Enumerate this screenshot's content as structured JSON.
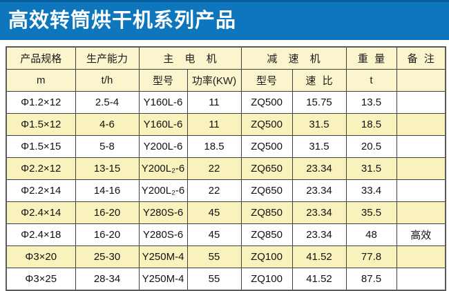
{
  "title": "高效转筒烘干机系列产品",
  "colors": {
    "banner_blue": "#0d76bd",
    "banner_top_edge": "#0a5f9e",
    "header_cream": "#fbf5cd",
    "alt_row_yellow": "#faf2bd",
    "border": "#3f3f3f",
    "title_text": "#ffffff"
  },
  "table": {
    "header_row1": [
      {
        "label": "产品规格"
      },
      {
        "label": "生产能力"
      },
      {
        "label": "主 电 机"
      },
      {
        "label": "减 速 机"
      },
      {
        "label": "重 量"
      },
      {
        "label": "备 注"
      }
    ],
    "header_row2": [
      {
        "label": "m"
      },
      {
        "label": "t/h"
      },
      {
        "label": "型号"
      },
      {
        "label": "功率(KW)"
      },
      {
        "label": "型号"
      },
      {
        "label": "速 比"
      },
      {
        "label": "t"
      },
      {
        "label": ""
      }
    ],
    "columns": [
      "spec",
      "capacity",
      "motor-model",
      "motor-power",
      "reducer-model",
      "reducer-ratio",
      "weight",
      "remark"
    ],
    "rows": [
      [
        "Φ1.2×12",
        "2.5-4",
        "Y160L-6",
        "11",
        "ZQ500",
        "15.75",
        "13.5",
        ""
      ],
      [
        "Φ1.5×12",
        "4-6",
        "Y160L-6",
        "11",
        "ZQ500",
        "31.5",
        "18.5",
        ""
      ],
      [
        "Φ1.5×15",
        "5-8",
        "Y200L-6",
        "18.5",
        "ZQ500",
        "31.5",
        "20.5",
        ""
      ],
      [
        "Φ2.2×12",
        "13-15",
        "Y200L₂-6",
        "22",
        "ZQ650",
        "23.34",
        "31.5",
        ""
      ],
      [
        "Φ2.2×14",
        "14-16",
        "Y200L₂-6",
        "22",
        "ZQ650",
        "23.34",
        "33.4",
        ""
      ],
      [
        "Φ2.4×14",
        "16-20",
        "Y280S-6",
        "45",
        "ZQ850",
        "23.34",
        "35.5",
        ""
      ],
      [
        "Φ2.4×18",
        "16-20",
        "Y280S-6",
        "45",
        "ZQ850",
        "23.34",
        "48",
        "高效"
      ],
      [
        "Φ3×20",
        "25-30",
        "Y250M-4",
        "55",
        "ZQ100",
        "41.52",
        "77.8",
        ""
      ],
      [
        "Φ3×25",
        "28-34",
        "Y250M-4",
        "55",
        "ZQ100",
        "41.52",
        "87.5",
        ""
      ]
    ]
  }
}
